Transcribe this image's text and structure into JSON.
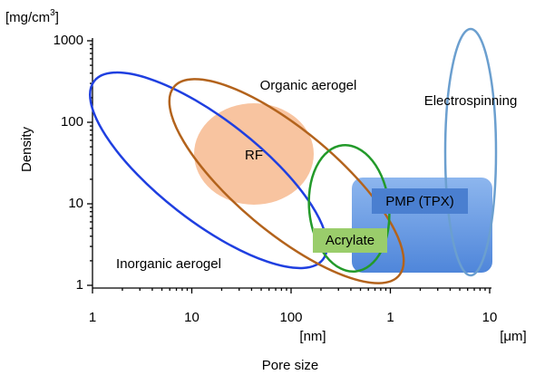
{
  "unit_density": "[mg/cm",
  "unit_density_exp": "3",
  "unit_density_close": "]",
  "y_axis_label": "Density",
  "x_axis_label": "Pore size",
  "yticks": [
    "1000",
    "100",
    "10",
    "1"
  ],
  "xticks": [
    "1",
    "10",
    "100",
    "1",
    "10"
  ],
  "x_unit_nm": "[nm]",
  "x_unit_um": "[μm]",
  "regions": {
    "organic": "Organic aerogel",
    "inorganic": "Inorganic aerogel",
    "rf": "RF",
    "acrylate": "Acrylate",
    "pmp": "PMP (TPX)",
    "electrospinning": "Electrospinning"
  }
}
